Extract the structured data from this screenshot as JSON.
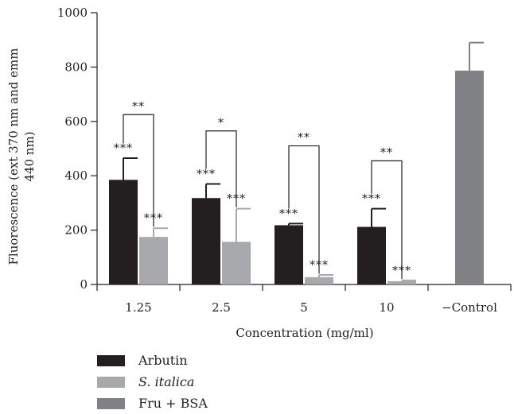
{
  "chart_data": {
    "type": "bar",
    "ylabel_lines": [
      "Fluorescence (ext 370 nm and emm",
      "440 nm)"
    ],
    "xlabel": "Concentration (mg/ml)",
    "ylim": [
      0,
      1000
    ],
    "yticks": [
      0,
      200,
      400,
      600,
      800,
      1000
    ],
    "categories": [
      "1.25",
      "2.5",
      "5",
      "10",
      "−Control"
    ],
    "series": [
      {
        "name": "Arbutin",
        "italic": false,
        "color": "#231f20",
        "values": [
          385,
          318,
          218,
          212,
          null
        ],
        "errors": [
          80,
          52,
          6,
          67,
          null
        ],
        "sig": [
          "***",
          "***",
          "***",
          "***",
          null
        ]
      },
      {
        "name": "S. italica",
        "italic": true,
        "color": "#a7a9ac",
        "values": [
          175,
          157,
          27,
          12,
          null
        ],
        "errors": [
          32,
          122,
          8,
          3,
          null
        ],
        "sig": [
          "***",
          "***",
          "***",
          "***",
          null
        ]
      },
      {
        "name": "Fru + BSA",
        "italic": false,
        "color": "#808285",
        "values": [
          null,
          null,
          null,
          null,
          787
        ],
        "errors": [
          null,
          null,
          null,
          null,
          103
        ],
        "sig": [
          null,
          null,
          null,
          null,
          null
        ]
      }
    ],
    "comparisons": [
      {
        "category": 0,
        "label": "**",
        "y": 625
      },
      {
        "category": 1,
        "label": "*",
        "y": 565
      },
      {
        "category": 2,
        "label": "**",
        "y": 510
      },
      {
        "category": 3,
        "label": "**",
        "y": 455
      }
    ],
    "grid": false,
    "legend_position": "bottom-left"
  }
}
